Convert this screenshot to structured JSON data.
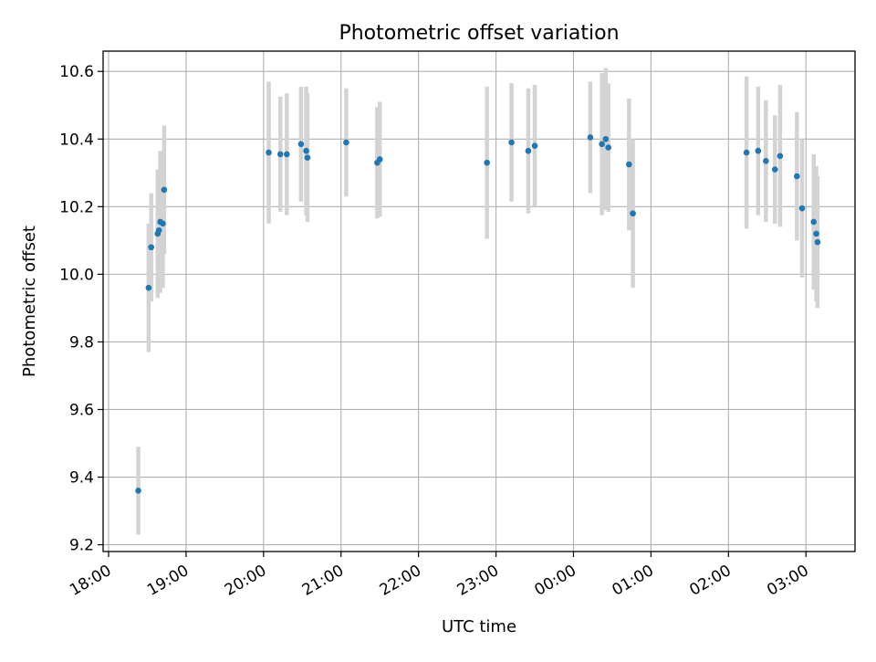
{
  "chart_data": {
    "type": "scatter",
    "title": "Photometric offset variation",
    "xlabel": "UTC time",
    "ylabel": "Photometric offset",
    "xlim": [
      "18:00",
      "03:38"
    ],
    "ylim": [
      9.18,
      10.66
    ],
    "xticks": [
      "18:00",
      "19:00",
      "20:00",
      "21:00",
      "22:00",
      "23:00",
      "00:00",
      "01:00",
      "02:00",
      "03:00"
    ],
    "yticks": [
      "9.2",
      "9.4",
      "9.6",
      "9.8",
      "10.0",
      "10.2",
      "10.4",
      "10.6"
    ],
    "grid": true,
    "marker_color": "#1f77b4",
    "errorbar_color": "#d3d3d3",
    "points": [
      {
        "x": "18:23",
        "y": 9.36,
        "err": 0.13
      },
      {
        "x": "18:31",
        "y": 9.96,
        "err": 0.19
      },
      {
        "x": "18:33",
        "y": 10.08,
        "err": 0.16
      },
      {
        "x": "18:38",
        "y": 10.12,
        "err": 0.19
      },
      {
        "x": "18:39",
        "y": 10.13,
        "err": 0.18
      },
      {
        "x": "18:40",
        "y": 10.155,
        "err": 0.21
      },
      {
        "x": "18:42",
        "y": 10.15,
        "err": 0.19
      },
      {
        "x": "18:43",
        "y": 10.25,
        "err": 0.19
      },
      {
        "x": "20:04",
        "y": 10.36,
        "err": 0.21
      },
      {
        "x": "20:13",
        "y": 10.355,
        "err": 0.17
      },
      {
        "x": "20:18",
        "y": 10.355,
        "err": 0.18
      },
      {
        "x": "20:29",
        "y": 10.385,
        "err": 0.17
      },
      {
        "x": "20:33",
        "y": 10.365,
        "err": 0.19
      },
      {
        "x": "20:34",
        "y": 10.345,
        "err": 0.19
      },
      {
        "x": "21:04",
        "y": 10.39,
        "err": 0.16
      },
      {
        "x": "21:28",
        "y": 10.33,
        "err": 0.165
      },
      {
        "x": "21:30",
        "y": 10.34,
        "err": 0.17
      },
      {
        "x": "22:53",
        "y": 10.33,
        "err": 0.225
      },
      {
        "x": "23:12",
        "y": 10.39,
        "err": 0.175
      },
      {
        "x": "23:25",
        "y": 10.365,
        "err": 0.185
      },
      {
        "x": "23:30",
        "y": 10.38,
        "err": 0.18
      },
      {
        "x": "00:13",
        "y": 10.405,
        "err": 0.165
      },
      {
        "x": "00:22",
        "y": 10.385,
        "err": 0.21
      },
      {
        "x": "00:25",
        "y": 10.4,
        "err": 0.21
      },
      {
        "x": "00:27",
        "y": 10.375,
        "err": 0.19
      },
      {
        "x": "00:43",
        "y": 10.325,
        "err": 0.195
      },
      {
        "x": "00:46",
        "y": 10.18,
        "err": 0.22
      },
      {
        "x": "02:14",
        "y": 10.36,
        "err": 0.225
      },
      {
        "x": "02:23",
        "y": 10.365,
        "err": 0.19
      },
      {
        "x": "02:29",
        "y": 10.335,
        "err": 0.18
      },
      {
        "x": "02:36",
        "y": 10.31,
        "err": 0.16
      },
      {
        "x": "02:40",
        "y": 10.35,
        "err": 0.21
      },
      {
        "x": "02:53",
        "y": 10.29,
        "err": 0.19
      },
      {
        "x": "02:57",
        "y": 10.195,
        "err": 0.205
      },
      {
        "x": "03:06",
        "y": 10.155,
        "err": 0.2
      },
      {
        "x": "03:08",
        "y": 10.12,
        "err": 0.2
      },
      {
        "x": "03:09",
        "y": 10.095,
        "err": 0.195
      }
    ]
  }
}
